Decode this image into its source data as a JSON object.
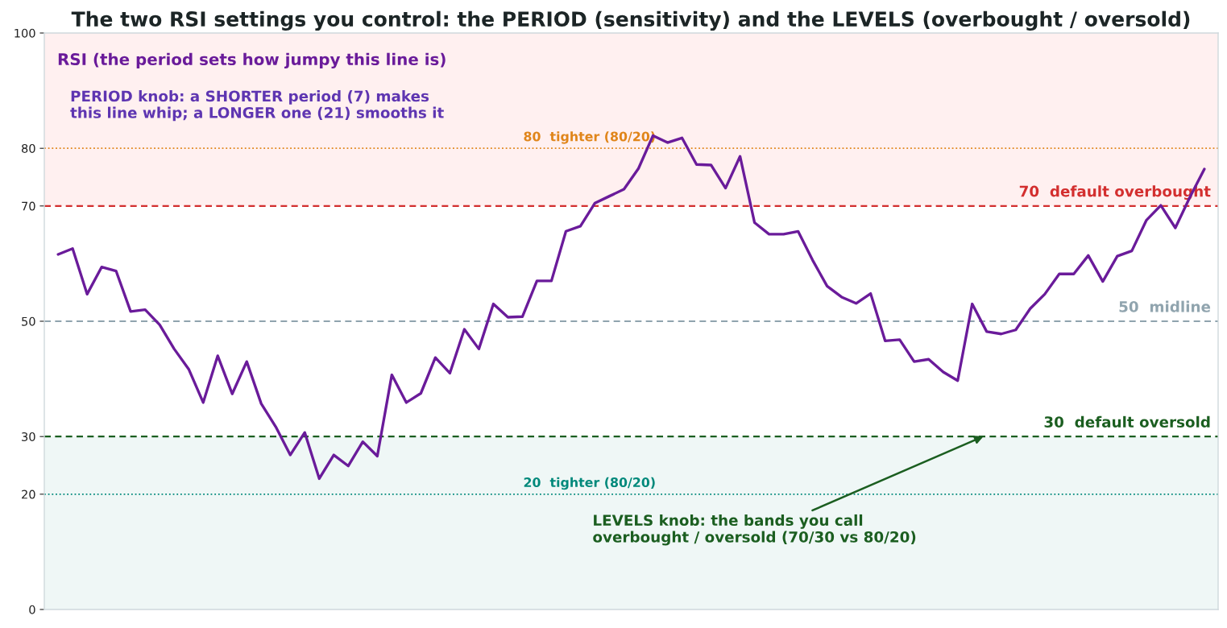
{
  "chart_data": {
    "type": "line",
    "title": "The two RSI settings you control: the PERIOD (sensitivity) and the LEVELS (overbought / oversold)",
    "categories": [
      null,
      null,
      null,
      null,
      null,
      null,
      null,
      null,
      null,
      null,
      null,
      null,
      null,
      null,
      null,
      null,
      null,
      null,
      null,
      null,
      null,
      null,
      null,
      null,
      null,
      null,
      null,
      null,
      null,
      null,
      null,
      null,
      null,
      null,
      null,
      null,
      null,
      null,
      null,
      null,
      null,
      null,
      null,
      null,
      null,
      null,
      null,
      null,
      null,
      null,
      null,
      null,
      null,
      null,
      null,
      null,
      null,
      null,
      null,
      null,
      null,
      null,
      null,
      null,
      null,
      null,
      null,
      null,
      null,
      null,
      null,
      null,
      null,
      null,
      null,
      null,
      null,
      null,
      null,
      null
    ],
    "series": [
      {
        "name": "RSI (the period sets how jumpy this line is)",
        "color": "#6a1b9a",
        "values": [
          61.6,
          62.6,
          54.7,
          59.4,
          58.7,
          51.7,
          52.0,
          49.4,
          45.2,
          41.7,
          35.9,
          44.0,
          37.4,
          43.0,
          35.7,
          31.7,
          26.8,
          30.7,
          22.7,
          26.8,
          24.9,
          29.1,
          26.6,
          40.7,
          35.9,
          37.5,
          43.7,
          41.0,
          48.6,
          45.2,
          53.0,
          50.7,
          50.8,
          57.0,
          57.0,
          65.6,
          66.5,
          70.5,
          71.7,
          72.9,
          76.5,
          82.2,
          81.0,
          81.8,
          77.2,
          77.1,
          73.1,
          78.6,
          67.1,
          65.1,
          65.1,
          65.6,
          60.6,
          56.1,
          54.2,
          53.1,
          54.8,
          46.6,
          46.8,
          43.0,
          43.4,
          41.2,
          39.7,
          53.0,
          48.2,
          47.8,
          48.5,
          52.2,
          54.7,
          58.2,
          58.2,
          61.4,
          56.9,
          61.3,
          62.2,
          67.5,
          70.1,
          66.2,
          71.5,
          76.4
        ]
      }
    ],
    "ylim": [
      0,
      100
    ],
    "yticks": [
      0,
      20,
      30,
      50,
      70,
      80,
      100
    ],
    "bands": [
      {
        "axis": "y",
        "from": 70,
        "to": 100,
        "color": "#fff0f0"
      },
      {
        "axis": "y",
        "from": 0,
        "to": 30,
        "color": "#eff7f6"
      }
    ],
    "ref_lines": [
      {
        "axis": "y",
        "value": 80,
        "label": "80  tighter (80/20)",
        "color": "#e0851a",
        "line_style": "dotted"
      },
      {
        "axis": "y",
        "value": 70,
        "label": "70  default overbought",
        "color": "#d32f2f",
        "line_style": "dashed"
      },
      {
        "axis": "y",
        "value": 50,
        "label": "50  midline",
        "color": "#90a4ae",
        "line_style": "dashed"
      },
      {
        "axis": "y",
        "value": 30,
        "label": "30  default oversold",
        "color": "#1b5e20",
        "line_style": "dashed"
      },
      {
        "axis": "y",
        "value": 20,
        "label": "20  tighter (80/20)",
        "color": "#00897b",
        "line_style": "dotted"
      }
    ],
    "annotations": [
      "PERIOD knob: a SHORTER period (7) makes\nthis line whip; a LONGER one (21) smooths it",
      "LEVELS knob: the bands you call\noverbought / oversold (70/30 vs 80/20)"
    ],
    "line_style": "solid"
  }
}
